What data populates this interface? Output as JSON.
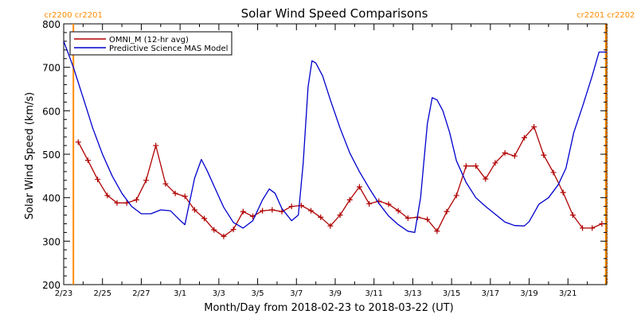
{
  "chart_data": {
    "type": "line",
    "title": "Solar Wind Speed Comparisons",
    "xlabel": "Month/Day from 2018-02-23 to 2018-03-22 (UT)",
    "ylabel": "Solar Wind Speed (km/s)",
    "xlim": [
      0,
      28
    ],
    "ylim": [
      200,
      800
    ],
    "y_ticks": [
      200,
      300,
      400,
      500,
      600,
      700,
      800
    ],
    "x_ticks": [
      {
        "day": 0,
        "label": "2/23"
      },
      {
        "day": 2,
        "label": "2/25"
      },
      {
        "day": 4,
        "label": "2/27"
      },
      {
        "day": 6,
        "label": "3/1"
      },
      {
        "day": 8,
        "label": "3/3"
      },
      {
        "day": 10,
        "label": "3/5"
      },
      {
        "day": 12,
        "label": "3/7"
      },
      {
        "day": 14,
        "label": "3/9"
      },
      {
        "day": 16,
        "label": "3/11"
      },
      {
        "day": 18,
        "label": "3/13"
      },
      {
        "day": 20,
        "label": "3/15"
      },
      {
        "day": 22,
        "label": "3/17"
      },
      {
        "day": 24,
        "label": "3/19"
      },
      {
        "day": 26,
        "label": "3/21"
      }
    ],
    "grid": false,
    "legend": "top-left",
    "markers": [
      {
        "day": 0.5,
        "labels": [
          "cr2200",
          "cr2201"
        ],
        "color": "#ff8c00",
        "side": "left"
      },
      {
        "day": 27.95,
        "labels": [
          "cr2201",
          "cr2202"
        ],
        "color": "#ff8c00",
        "side": "right"
      }
    ],
    "series": [
      {
        "name": "OMNI_M (12-hr avg)",
        "color": "#b00000",
        "marker": "plus",
        "x": [
          0.75,
          1.25,
          1.75,
          2.25,
          2.75,
          3.25,
          3.75,
          4.25,
          4.75,
          5.25,
          5.75,
          6.25,
          6.75,
          7.25,
          7.75,
          8.25,
          8.75,
          9.25,
          9.75,
          10.25,
          10.75,
          11.25,
          11.75,
          12.25,
          12.75,
          13.25,
          13.75,
          14.25,
          14.75,
          15.25,
          15.75,
          16.25,
          16.75,
          17.25,
          17.75,
          18.25,
          18.75,
          19.25,
          19.75,
          20.25,
          20.75,
          21.25,
          21.75,
          22.25,
          22.75,
          23.25,
          23.75,
          24.25,
          24.75,
          25.25,
          25.75,
          26.25,
          26.75,
          27.25,
          27.75
        ],
        "values": [
          528,
          486,
          442,
          405,
          388,
          388,
          395,
          440,
          520,
          432,
          410,
          403,
          372,
          352,
          326,
          311,
          327,
          368,
          357,
          370,
          372,
          368,
          380,
          382,
          370,
          355,
          335,
          360,
          395,
          425,
          386,
          392,
          385,
          370,
          353,
          355,
          350,
          323,
          368,
          405,
          473,
          473,
          443,
          480,
          503,
          496,
          538,
          563,
          498,
          458,
          412,
          360,
          330,
          330,
          340
        ]
      },
      {
        "name": "Predictive Science MAS Model",
        "color": "#0000cc",
        "marker": "none",
        "x": [
          0,
          0.5,
          1,
          1.5,
          2,
          2.5,
          3,
          3.5,
          4,
          4.5,
          5,
          5.5,
          6,
          6.25,
          6.75,
          7.1,
          7.4,
          7.8,
          8.25,
          8.75,
          9.25,
          9.75,
          10.25,
          10.6,
          10.9,
          11.25,
          11.75,
          12.1,
          12.35,
          12.6,
          12.8,
          13,
          13.35,
          13.75,
          14.25,
          14.75,
          15.25,
          15.75,
          16.25,
          16.75,
          17.25,
          17.75,
          18.1,
          18.4,
          18.75,
          19,
          19.25,
          19.55,
          19.9,
          20.25,
          20.75,
          21.25,
          21.75,
          22.25,
          22.75,
          23.25,
          23.75,
          24,
          24.5,
          25,
          25.5,
          25.9,
          26.3,
          26.75,
          27.25,
          27.6,
          28
        ],
        "values": [
          760,
          700,
          630,
          560,
          500,
          450,
          410,
          380,
          363,
          363,
          372,
          370,
          348,
          338,
          445,
          488,
          462,
          422,
          378,
          343,
          330,
          347,
          395,
          420,
          410,
          375,
          347,
          360,
          480,
          655,
          715,
          710,
          680,
          625,
          560,
          503,
          460,
          422,
          387,
          358,
          338,
          323,
          320,
          400,
          570,
          630,
          625,
          600,
          550,
          485,
          435,
          400,
          380,
          362,
          344,
          336,
          335,
          345,
          385,
          400,
          430,
          468,
          550,
          610,
          680,
          735,
          735
        ]
      }
    ]
  }
}
